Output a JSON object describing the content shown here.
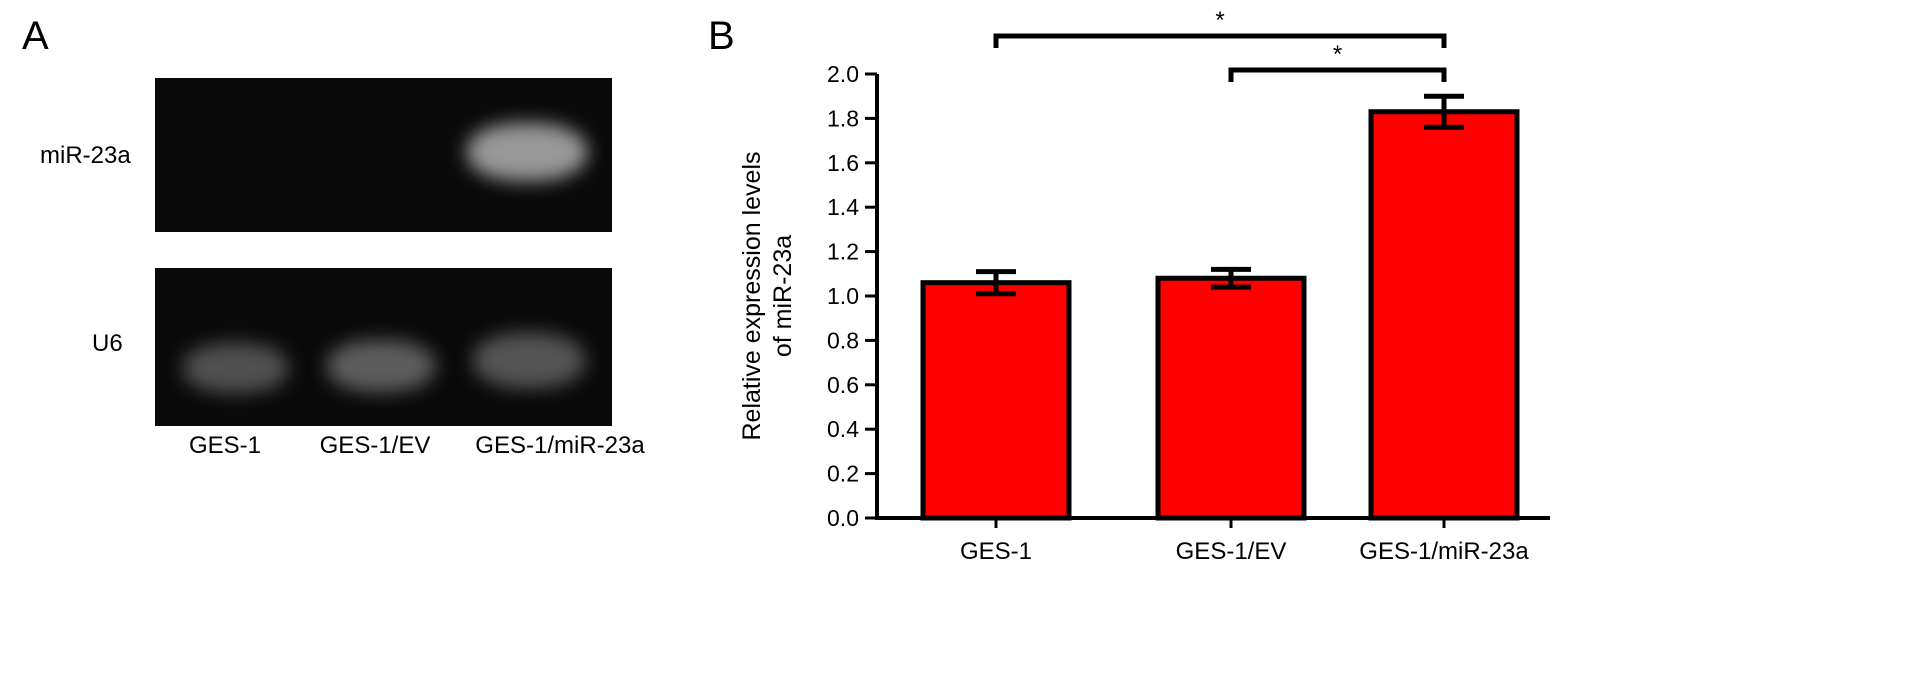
{
  "panel_a": {
    "letter": "A",
    "row_labels": {
      "top": "miR-23a",
      "bottom": "U6"
    },
    "lanes": [
      "GES-1",
      "GES-1/EV",
      "GES-1/miR-23a"
    ]
  },
  "panel_b": {
    "letter": "B"
  },
  "chart_data": {
    "type": "bar",
    "categories": [
      "GES-1",
      "GES-1/EV",
      "GES-1/miR-23a"
    ],
    "values": [
      1.06,
      1.08,
      1.83
    ],
    "errors": [
      0.05,
      0.04,
      0.07
    ],
    "ylabel_lines": [
      "Relative expression levels",
      "of miR-23a"
    ],
    "ylim": [
      0,
      2.0
    ],
    "yticks": [
      "0.0",
      "0.2",
      "0.4",
      "0.6",
      "0.8",
      "1.0",
      "1.2",
      "1.4",
      "1.6",
      "1.8",
      "2.0"
    ],
    "bar_color": "#ff0000",
    "significance": [
      {
        "from": "GES-1",
        "to": "GES-1/miR-23a",
        "label": "*"
      },
      {
        "from": "GES-1/EV",
        "to": "GES-1/miR-23a",
        "label": "*"
      }
    ]
  }
}
